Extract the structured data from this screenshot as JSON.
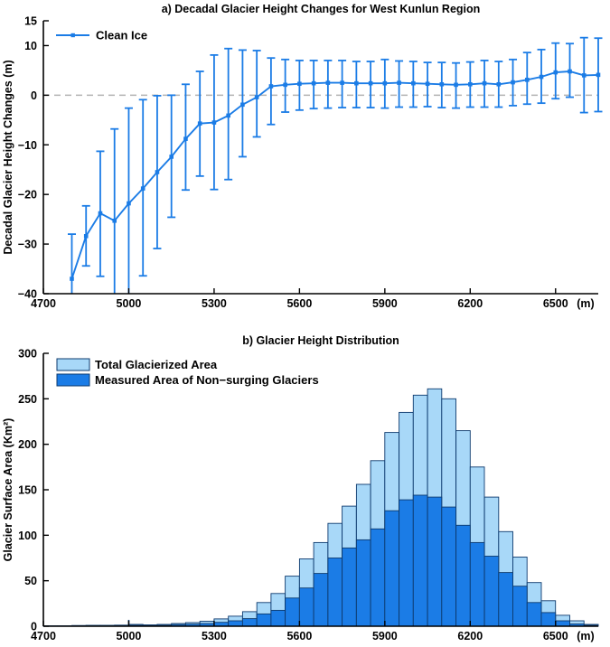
{
  "figure": {
    "background": "#ffffff",
    "panel_a_title": "a) Decadal Glacier Height Changes for West Kunlun Region",
    "panel_b_title": "b) Glacier Height Distribution"
  },
  "colors": {
    "line_blue": "#1b7ce6",
    "marker_blue": "#1b7ce6",
    "bar_total_fill": "#a8d8f8",
    "bar_measured_fill": "#1b7ce6",
    "bar_edge": "#0d3a6e",
    "zero_line_gray": "#b3b3b3",
    "axis_black": "#000000"
  },
  "chart_data": [
    {
      "type": "line",
      "title": "a) Decadal Glacier Height Changes for West Kunlun Region",
      "xlabel": "",
      "ylabel": "Decadal Glacier Height Changes (m)",
      "x_unit_label": "(m)",
      "xlim": [
        4700,
        6650
      ],
      "ylim": [
        -40,
        15
      ],
      "xticks": [
        4700,
        5000,
        5300,
        5600,
        5900,
        6200,
        6500
      ],
      "yticks": [
        15,
        10,
        0,
        -10,
        -20,
        -30,
        -40
      ],
      "zero_line": true,
      "grid": false,
      "legend_position": "top-left",
      "legend": [
        "Clean Ice"
      ],
      "series": [
        {
          "name": "Clean Ice",
          "x": [
            4800,
            4850,
            4900,
            4950,
            5000,
            5050,
            5100,
            5150,
            5200,
            5250,
            5300,
            5350,
            5400,
            5450,
            5500,
            5550,
            5600,
            5650,
            5700,
            5750,
            5800,
            5850,
            5900,
            5950,
            6000,
            6050,
            6100,
            6150,
            6200,
            6250,
            6300,
            6350,
            6400,
            6450,
            6500,
            6550,
            6600,
            6650
          ],
          "y": [
            -37,
            -28.4,
            -23.8,
            -25.3,
            -21.8,
            -18.8,
            -15.5,
            -12.4,
            -8.8,
            -5.7,
            -5.5,
            -4.1,
            -1.9,
            -0.4,
            1.8,
            2.1,
            2.3,
            2.4,
            2.5,
            2.5,
            2.4,
            2.4,
            2.4,
            2.5,
            2.4,
            2.3,
            2.2,
            2.1,
            2.2,
            2.4,
            2.2,
            2.6,
            3.1,
            3.7,
            4.6,
            4.8,
            4.0,
            4.1
          ],
          "err_upper": [
            -28,
            -22.3,
            -11.3,
            -6.8,
            -2.6,
            -0.9,
            -0.1,
            0.0,
            2.2,
            4.8,
            8.1,
            9.4,
            9.1,
            9.0,
            7.5,
            7.2,
            7.0,
            7.0,
            7.0,
            7.0,
            6.8,
            6.8,
            7.2,
            6.9,
            6.8,
            6.6,
            6.6,
            6.5,
            6.7,
            7.0,
            6.8,
            7.2,
            8.6,
            9.2,
            10.5,
            10.4,
            11.6,
            11.5
          ],
          "err_lower": [
            -46,
            -34.4,
            -36.5,
            -44,
            -41,
            -36.4,
            -30.9,
            -24.6,
            -19.1,
            -16.3,
            -19.0,
            -17.0,
            -12.4,
            -8.4,
            -5.9,
            -3.4,
            -3.0,
            -2.7,
            -2.6,
            -2.5,
            -2.5,
            -2.5,
            -2.6,
            -2.4,
            -2.4,
            -2.3,
            -2.5,
            -2.6,
            -2.4,
            -2.4,
            -2.4,
            -2.1,
            -1.8,
            -1.6,
            -0.7,
            -0.4,
            -3.5,
            -3.3
          ]
        }
      ]
    },
    {
      "type": "bar",
      "title": "b) Glacier Height Distribution",
      "xlabel": "",
      "ylabel": "Glacier Surface Area (Km²)",
      "x_unit_label": "(m)",
      "xlim": [
        4700,
        6650
      ],
      "ylim": [
        0,
        300
      ],
      "xticks": [
        4700,
        5000,
        5300,
        5600,
        5900,
        6200,
        6500
      ],
      "yticks": [
        0,
        50,
        100,
        150,
        200,
        250,
        300
      ],
      "grid": false,
      "legend_position": "top-left",
      "bin_width": 50,
      "bin_left_edges": [
        4700,
        4750,
        4800,
        4850,
        4900,
        4950,
        5000,
        5050,
        5100,
        5150,
        5200,
        5250,
        5300,
        5350,
        5400,
        5450,
        5500,
        5550,
        5600,
        5650,
        5700,
        5750,
        5800,
        5850,
        5900,
        5950,
        6000,
        6050,
        6100,
        6150,
        6200,
        6250,
        6300,
        6350,
        6400,
        6450,
        6500,
        6550,
        6600
      ],
      "series": [
        {
          "name": "Total Glacierized Area",
          "values": [
            0.5,
            0.5,
            0.8,
            1,
            1,
            1.2,
            2,
            1.5,
            2,
            3,
            4,
            5.5,
            8,
            11,
            16,
            26,
            36,
            55,
            74,
            92,
            113,
            132,
            156,
            182,
            213,
            235,
            254,
            261,
            250,
            215,
            175,
            142,
            104,
            76,
            48,
            28,
            12,
            6,
            2
          ]
        },
        {
          "name": "Measured Area of Non−surging Glaciers",
          "values": [
            0.2,
            0.2,
            0.3,
            0.4,
            0.4,
            0.5,
            1,
            0.7,
            1,
            1.8,
            2.3,
            3,
            4.3,
            6,
            8.3,
            13.5,
            17.5,
            31,
            42,
            58,
            75,
            86,
            95,
            107,
            127,
            139,
            144,
            142,
            131,
            111,
            92,
            77,
            59,
            44,
            26,
            15,
            6,
            2.5,
            1
          ]
        }
      ],
      "narrow_spike": {
        "x": 5000,
        "value": 7
      }
    }
  ]
}
